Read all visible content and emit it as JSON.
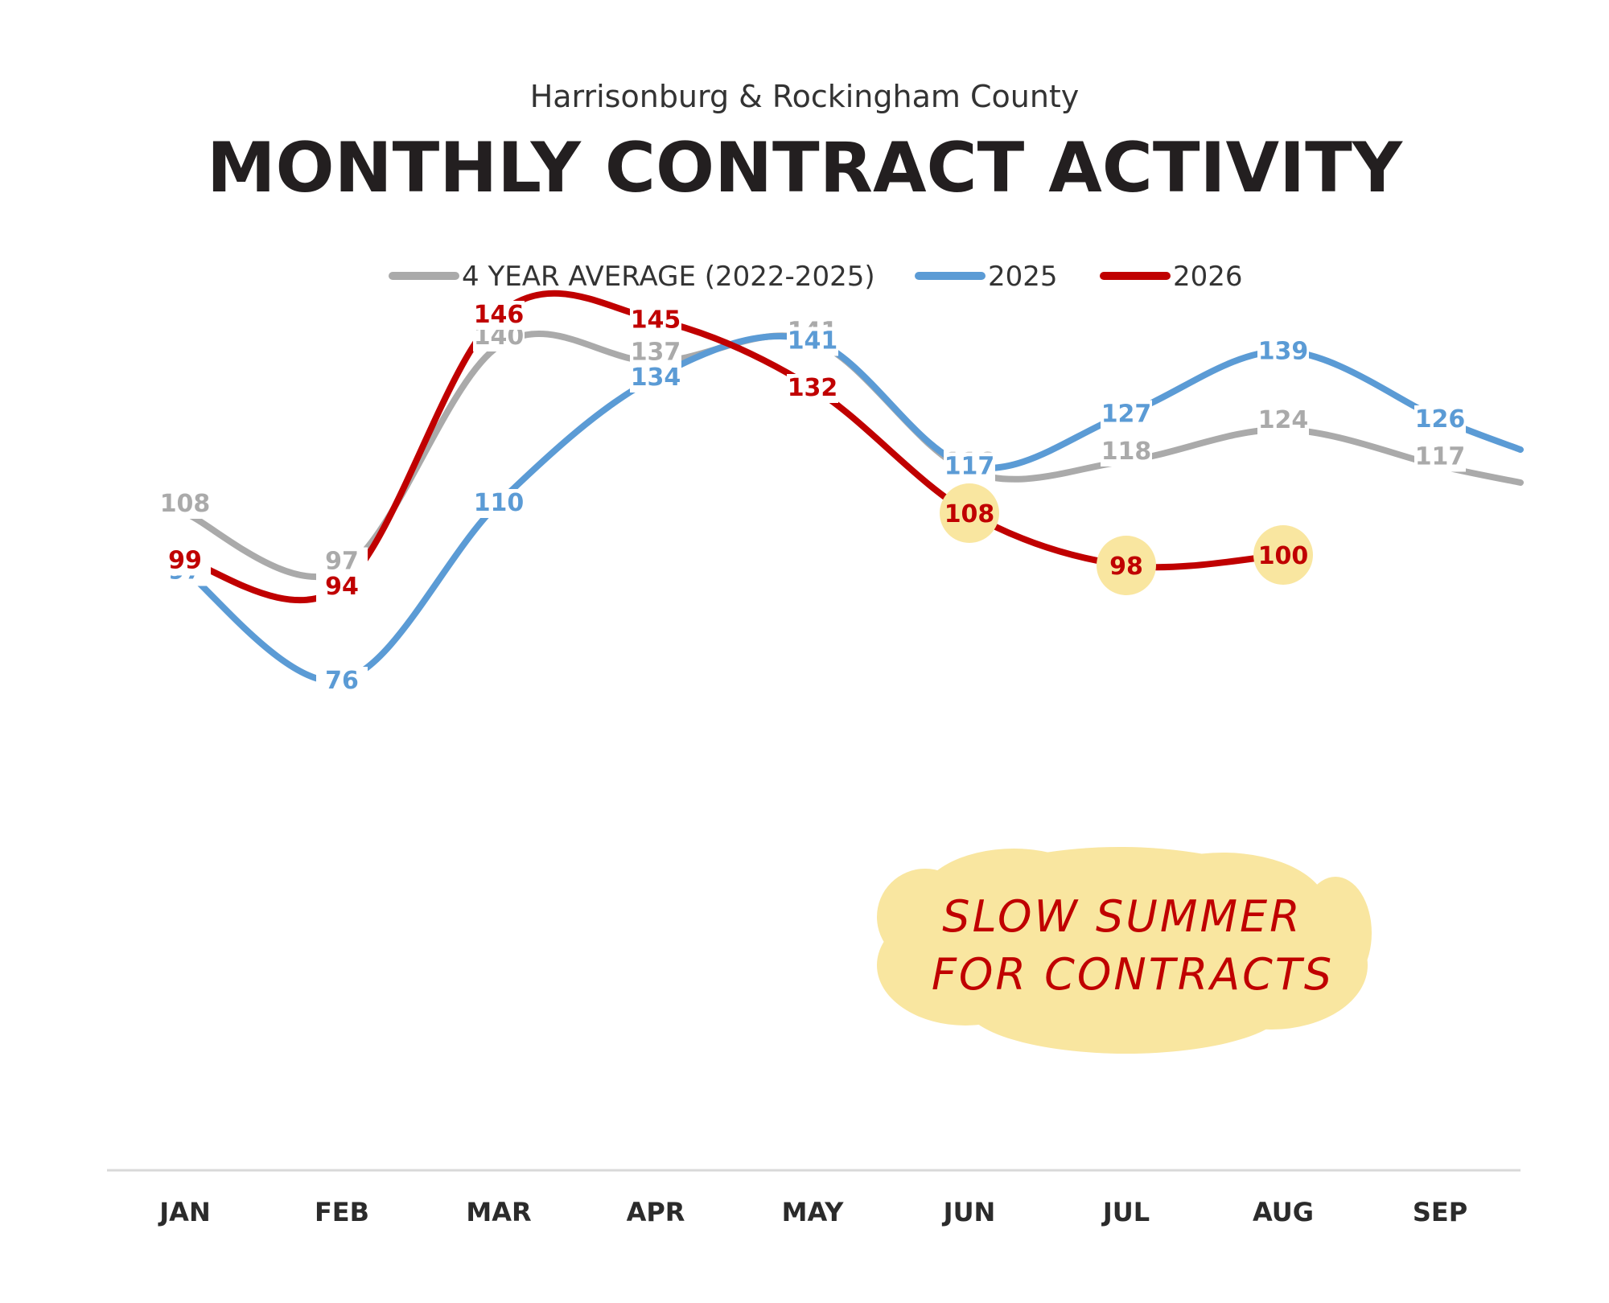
{
  "subtitle": "Harrisonburg & Rockingham County",
  "title": "MONTHLY CONTRACT ACTIVITY",
  "annotation": {
    "line1": "SLOW SUMMER",
    "line2": "FOR CONTRACTS"
  },
  "colors": {
    "avg": "#aaaaaa",
    "y2025": "#5b9bd5",
    "y2026": "#c00000",
    "highlight": "#f9e6a0",
    "axis": "#d9d9d9"
  },
  "chart_data": {
    "type": "line",
    "categories": [
      "JAN",
      "FEB",
      "MAR",
      "APR",
      "MAY",
      "JUN",
      "JUL",
      "AUG",
      "SEP"
    ],
    "series": [
      {
        "name": "4 YEAR AVERAGE (2022-2025)",
        "values": [
          108,
          97,
          140,
          137,
          141,
          116,
          118,
          124,
          117
        ]
      },
      {
        "name": "2025",
        "values": [
          97,
          76,
          110,
          134,
          141,
          117,
          127,
          139,
          126
        ]
      },
      {
        "name": "2026",
        "values": [
          99,
          94,
          146,
          145,
          132,
          108,
          98,
          100,
          null
        ]
      }
    ],
    "highlighted": {
      "series": "2026",
      "months": [
        "JUN",
        "JUL",
        "AUG"
      ]
    },
    "ylim": [
      40,
      160
    ],
    "grid": false,
    "legend_position": "top"
  }
}
